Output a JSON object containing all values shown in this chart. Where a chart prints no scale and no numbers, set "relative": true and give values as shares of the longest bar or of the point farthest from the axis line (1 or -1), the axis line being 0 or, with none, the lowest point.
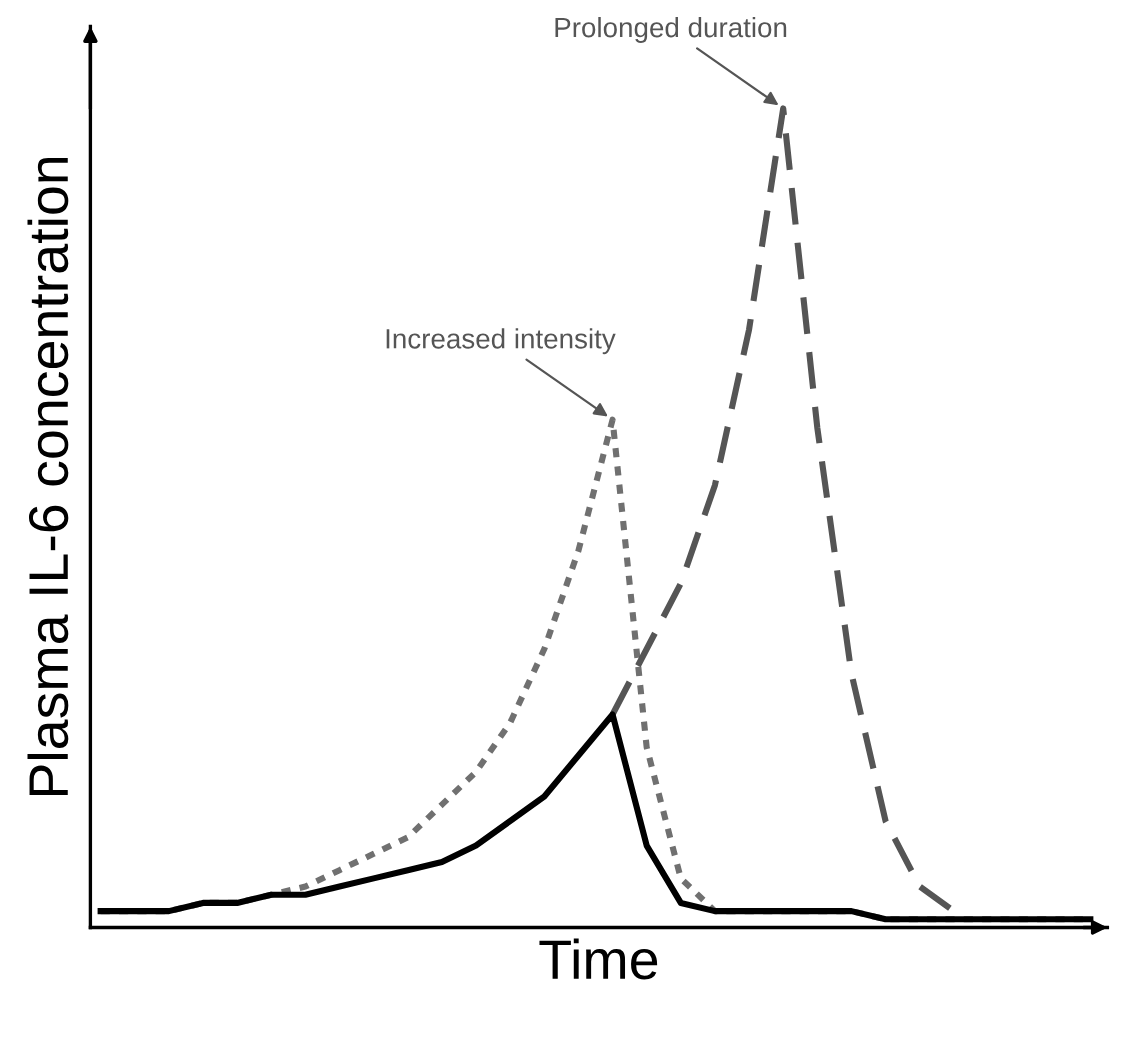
{
  "chart_data": {
    "type": "line",
    "relative": true,
    "xlabel": "Time",
    "ylabel": "Plasma IL-6 concentration",
    "categories": [
      null,
      null,
      null,
      null,
      null,
      null,
      null,
      null,
      null,
      null,
      null,
      null,
      null,
      null,
      null,
      null,
      null,
      null,
      null,
      null,
      null,
      null,
      null,
      null,
      null,
      null,
      null,
      null,
      null,
      null
    ],
    "series": [
      {
        "color": "#000000",
        "line_style": "solid",
        "values": [
          0.02,
          0.02,
          0.02,
          0.03,
          0.03,
          0.04,
          0.04,
          0.05,
          0.06,
          0.07,
          0.08,
          0.1,
          0.13,
          0.16,
          0.21,
          0.26,
          0.1,
          0.03,
          0.02,
          0.02,
          0.02,
          0.02,
          0.02,
          0.01,
          0.01,
          0.01,
          0.01,
          0.01,
          0.01,
          0.01
        ]
      },
      {
        "color": "#707070",
        "line_style": "dotted",
        "values": [
          0.02,
          0.02,
          0.02,
          0.03,
          0.03,
          0.04,
          0.05,
          0.07,
          0.09,
          0.11,
          0.15,
          0.19,
          0.25,
          0.34,
          0.46,
          0.62,
          0.22,
          0.06,
          0.02,
          0.02,
          0.02,
          0.02,
          0.02,
          0.01,
          0.01,
          0.01,
          0.01,
          0.01,
          0.01,
          0.01
        ]
      },
      {
        "color": "#555555",
        "line_style": "dashed",
        "values": [
          null,
          null,
          null,
          null,
          null,
          null,
          null,
          null,
          null,
          null,
          null,
          null,
          null,
          null,
          null,
          0.26,
          0.34,
          0.42,
          0.54,
          0.73,
          1.0,
          0.61,
          0.31,
          0.13,
          0.05,
          0.02,
          null,
          null,
          null,
          null
        ]
      }
    ],
    "annotations": [
      "Increased intensity",
      "Prolonged duration"
    ],
    "legend": false
  }
}
